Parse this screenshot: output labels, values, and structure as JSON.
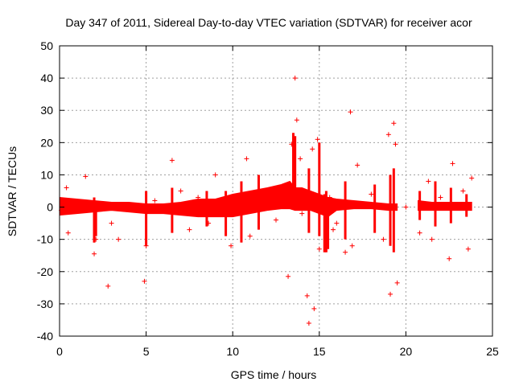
{
  "chart_data": {
    "type": "scatter",
    "title": "Day 347 of 2011, Sidereal Day-to-day VTEC variation (SDTVAR) for receiver acor",
    "xlabel": "GPS time / hours",
    "ylabel": "SDTVAR / TECUs",
    "xlim": [
      0,
      25
    ],
    "ylim": [
      -40,
      50
    ],
    "x_ticks": [
      0,
      5,
      10,
      15,
      20,
      25
    ],
    "y_ticks": [
      -40,
      -30,
      -20,
      -10,
      0,
      10,
      20,
      30,
      40,
      50
    ],
    "grid": true,
    "marker": "+",
    "color": "#ff0000",
    "series": [
      {
        "name": "SDTVAR",
        "x": [
          0.1,
          0.3,
          0.4,
          0.5,
          1.5,
          2.0,
          2.1,
          2.8,
          3.0,
          3.4,
          4.9,
          5.0,
          5.5,
          6.5,
          7.0,
          7.5,
          8.0,
          8.6,
          9.0,
          9.9,
          10.0,
          10.3,
          10.8,
          11.0,
          12.0,
          12.5,
          13.0,
          13.2,
          13.4,
          13.6,
          13.7,
          13.9,
          14.0,
          14.3,
          14.4,
          14.6,
          14.7,
          14.9,
          15.0,
          15.4,
          15.6,
          15.8,
          16.0,
          16.5,
          16.8,
          16.9,
          17.2,
          18.0,
          18.7,
          19.0,
          19.1,
          19.3,
          19.4,
          19.5,
          20.0,
          20.8,
          21.3,
          21.5,
          22.0,
          22.5,
          22.7,
          23.3,
          23.6,
          23.8
        ],
        "y": [
          -1,
          2,
          6,
          -8,
          9.5,
          -14.5,
          -10,
          -24.5,
          -5,
          -10,
          -23,
          -12,
          2,
          14.5,
          5,
          -7,
          3,
          -5,
          10,
          -12,
          3,
          -2,
          15,
          -9,
          5,
          -4,
          3,
          -21.5,
          19.5,
          40,
          27,
          15,
          -2,
          -27.5,
          -36,
          18,
          -31.5,
          21,
          -13,
          2,
          3,
          -7,
          -5,
          -14,
          29.5,
          -12,
          13,
          4,
          -10,
          22.5,
          -27,
          26,
          19.5,
          -23.5,
          0,
          -8,
          8,
          -10,
          3,
          -16,
          13.5,
          5,
          -13,
          9
        ]
      }
    ]
  }
}
